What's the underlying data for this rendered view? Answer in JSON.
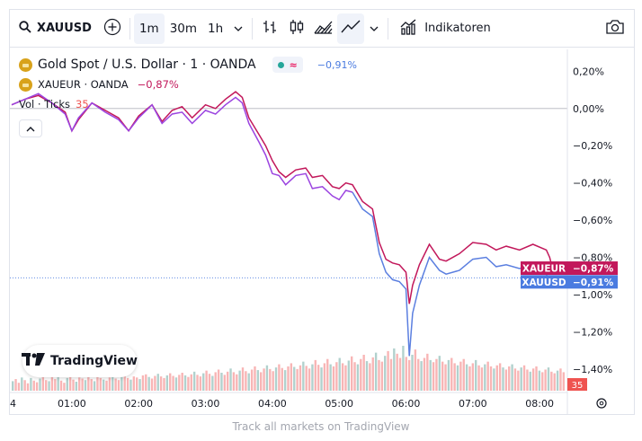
{
  "toolbar": {
    "symbol": "XAUUSD",
    "intervals": [
      "1m",
      "30m",
      "1h"
    ],
    "active_interval": "1m",
    "indicators_label": "Indikatoren",
    "icons": [
      "search-icon",
      "add-symbol-icon",
      "chevron-down-icon",
      "bar-style-icon",
      "candles-icon",
      "area-icon",
      "line-icon",
      "chevron-down-icon",
      "indicators-icon",
      "camera-icon"
    ]
  },
  "legend": {
    "main": {
      "name": "Gold Spot / U.S. Dollar · 1 · OANDA",
      "change": "−0,91%"
    },
    "compare": {
      "name": "XAUEUR · OANDA",
      "change": "−0,87%"
    },
    "volume": {
      "label": "Vol · Ticks",
      "value": "35"
    }
  },
  "logo": {
    "text": "TradingView"
  },
  "footer": {
    "text": "Track all markets on TradingView"
  },
  "colors": {
    "xauusd": "#5b7fe0",
    "xauusd_label_bg": "#4a7be0",
    "xauusd_purple": "#9b44e0",
    "xaueur": "#c2185b",
    "vol_up": "#f7a8a8",
    "vol_down": "#a3c9c4",
    "vol_last": "#ef5350"
  },
  "chart_data": {
    "type": "line",
    "x_ticks": [
      "01:00",
      "02:00",
      "03:00",
      "04:00",
      "05:00",
      "06:00",
      "07:00",
      "08:00"
    ],
    "x_first_label": "4",
    "y_ticks": [
      "0,20%",
      "0,00%",
      "−0,20%",
      "−0,40%",
      "−0,60%",
      "−0,80%",
      "−1,00%",
      "−1,20%",
      "−1,40%"
    ],
    "ylim": [
      -1.42,
      0.25
    ],
    "xlim": [
      0.1,
      8.2
    ],
    "series": [
      {
        "name": "XAUUSD",
        "label": "XAUUSD",
        "last": "−0,91%",
        "last_value": -0.91,
        "points": [
          [
            0.1,
            0.02
          ],
          [
            0.3,
            0.05
          ],
          [
            0.5,
            0.08
          ],
          [
            0.7,
            0.03
          ],
          [
            0.9,
            -0.03
          ],
          [
            1.0,
            -0.12
          ],
          [
            1.1,
            -0.05
          ],
          [
            1.3,
            0.03
          ],
          [
            1.5,
            -0.02
          ],
          [
            1.7,
            -0.06
          ],
          [
            1.85,
            -0.12
          ],
          [
            2.0,
            -0.05
          ],
          [
            2.2,
            0.02
          ],
          [
            2.35,
            -0.08
          ],
          [
            2.5,
            -0.03
          ],
          [
            2.65,
            -0.02
          ],
          [
            2.8,
            -0.08
          ],
          [
            3.0,
            -0.01
          ],
          [
            3.15,
            -0.03
          ],
          [
            3.3,
            0.02
          ],
          [
            3.45,
            0.06
          ],
          [
            3.55,
            0.03
          ],
          [
            3.65,
            -0.08
          ],
          [
            3.8,
            -0.18
          ],
          [
            3.9,
            -0.25
          ],
          [
            4.0,
            -0.35
          ],
          [
            4.1,
            -0.36
          ],
          [
            4.2,
            -0.41
          ],
          [
            4.35,
            -0.36
          ],
          [
            4.5,
            -0.35
          ],
          [
            4.6,
            -0.43
          ],
          [
            4.75,
            -0.42
          ],
          [
            4.9,
            -0.47
          ],
          [
            5.0,
            -0.49
          ],
          [
            5.1,
            -0.44
          ],
          [
            5.2,
            -0.45
          ],
          [
            5.35,
            -0.54
          ],
          [
            5.5,
            -0.58
          ],
          [
            5.6,
            -0.78
          ],
          [
            5.7,
            -0.88
          ],
          [
            5.8,
            -0.92
          ],
          [
            5.9,
            -0.93
          ],
          [
            6.0,
            -0.97
          ],
          [
            6.05,
            -1.33
          ],
          [
            6.1,
            -1.1
          ],
          [
            6.2,
            -0.95
          ],
          [
            6.35,
            -0.8
          ],
          [
            6.5,
            -0.87
          ],
          [
            6.6,
            -0.89
          ],
          [
            6.8,
            -0.87
          ],
          [
            7.0,
            -0.81
          ],
          [
            7.2,
            -0.8
          ],
          [
            7.35,
            -0.85
          ],
          [
            7.5,
            -0.84
          ],
          [
            7.7,
            -0.86
          ],
          [
            7.9,
            -0.84
          ],
          [
            8.1,
            -0.89
          ],
          [
            8.15,
            -0.93
          ],
          [
            8.2,
            -0.91
          ]
        ]
      },
      {
        "name": "XAUEUR",
        "label": "XAUEUR",
        "last": "−0,87%",
        "last_value": -0.87,
        "points": [
          [
            0.1,
            0.02
          ],
          [
            0.3,
            0.05
          ],
          [
            0.5,
            0.07
          ],
          [
            0.7,
            0.03
          ],
          [
            0.9,
            -0.02
          ],
          [
            1.0,
            -0.12
          ],
          [
            1.1,
            -0.06
          ],
          [
            1.3,
            0.03
          ],
          [
            1.5,
            -0.01
          ],
          [
            1.7,
            -0.05
          ],
          [
            1.85,
            -0.12
          ],
          [
            2.0,
            -0.04
          ],
          [
            2.2,
            0.02
          ],
          [
            2.35,
            -0.07
          ],
          [
            2.5,
            -0.01
          ],
          [
            2.65,
            0.01
          ],
          [
            2.8,
            -0.05
          ],
          [
            3.0,
            0.02
          ],
          [
            3.15,
            0.0
          ],
          [
            3.3,
            0.05
          ],
          [
            3.45,
            0.09
          ],
          [
            3.55,
            0.06
          ],
          [
            3.65,
            -0.05
          ],
          [
            3.8,
            -0.14
          ],
          [
            3.9,
            -0.2
          ],
          [
            4.0,
            -0.28
          ],
          [
            4.1,
            -0.34
          ],
          [
            4.2,
            -0.37
          ],
          [
            4.35,
            -0.33
          ],
          [
            4.5,
            -0.32
          ],
          [
            4.6,
            -0.37
          ],
          [
            4.75,
            -0.36
          ],
          [
            4.9,
            -0.42
          ],
          [
            5.0,
            -0.43
          ],
          [
            5.1,
            -0.4
          ],
          [
            5.2,
            -0.41
          ],
          [
            5.35,
            -0.5
          ],
          [
            5.5,
            -0.54
          ],
          [
            5.6,
            -0.72
          ],
          [
            5.7,
            -0.81
          ],
          [
            5.8,
            -0.83
          ],
          [
            5.9,
            -0.84
          ],
          [
            6.0,
            -0.88
          ],
          [
            6.05,
            -1.05
          ],
          [
            6.1,
            -0.95
          ],
          [
            6.2,
            -0.84
          ],
          [
            6.35,
            -0.73
          ],
          [
            6.5,
            -0.81
          ],
          [
            6.6,
            -0.82
          ],
          [
            6.8,
            -0.78
          ],
          [
            7.0,
            -0.72
          ],
          [
            7.2,
            -0.73
          ],
          [
            7.35,
            -0.76
          ],
          [
            7.5,
            -0.74
          ],
          [
            7.7,
            -0.76
          ],
          [
            7.9,
            -0.73
          ],
          [
            8.1,
            -0.76
          ],
          [
            8.15,
            -0.8
          ],
          [
            8.2,
            -0.87
          ]
        ]
      }
    ],
    "reference_line": -0.91,
    "volume": {
      "label": "Vol · Ticks",
      "last": 35,
      "values": [
        18,
        22,
        15,
        25,
        20,
        14,
        24,
        19,
        16,
        23,
        26,
        20,
        18,
        27,
        22,
        30,
        19,
        15,
        24,
        28,
        21,
        17,
        25,
        23,
        20,
        26,
        22,
        18,
        27,
        24,
        21,
        19,
        25,
        28,
        23,
        20,
        26,
        30,
        24,
        21,
        27,
        25,
        22,
        29,
        31,
        26,
        23,
        28,
        32,
        27,
        24,
        29,
        33,
        28,
        25,
        30,
        34,
        29,
        26,
        31,
        36,
        30,
        27,
        33,
        38,
        32,
        28,
        35,
        40,
        34,
        30,
        36,
        42,
        35,
        31,
        38,
        44,
        37,
        33,
        40,
        46,
        39,
        35,
        42,
        48,
        41,
        37,
        44,
        50,
        43,
        39,
        46,
        52,
        45,
        41,
        48,
        55,
        47,
        42,
        50,
        58,
        49,
        44,
        52,
        60,
        50,
        46,
        54,
        62,
        52,
        48,
        57,
        65,
        54,
        50,
        60,
        68,
        56,
        52,
        63,
        72,
        58,
        55,
        66,
        75,
        60,
        80,
        70,
        62,
        85,
        64,
        58,
        68,
        78,
        60,
        56,
        62,
        70,
        58,
        54,
        60,
        66,
        55,
        50,
        58,
        62,
        52,
        48,
        55,
        60,
        50,
        46,
        52,
        58,
        48,
        44,
        50,
        55,
        46,
        42,
        48,
        52,
        44,
        40,
        46,
        50,
        42,
        38,
        44,
        48,
        40,
        36,
        42,
        46,
        38,
        35,
        40,
        44,
        36,
        33,
        38,
        42,
        35
      ]
    }
  }
}
